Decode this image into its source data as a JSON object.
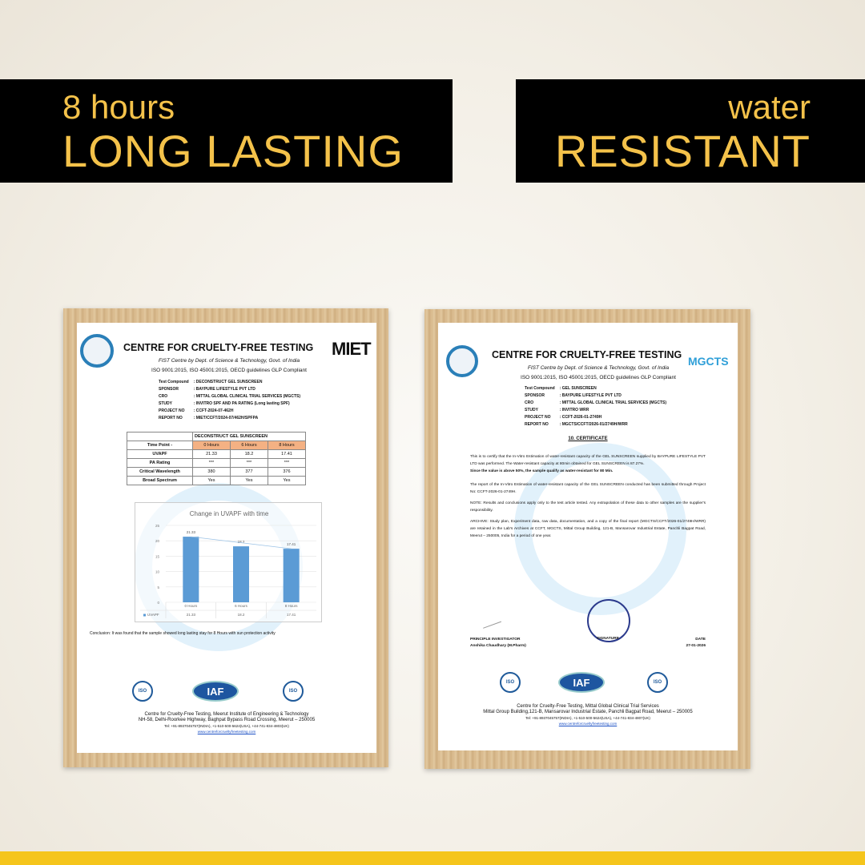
{
  "banners": {
    "left": {
      "small": "8 hours",
      "big": "LONG LASTING"
    },
    "right": {
      "small": "water",
      "big": "RESISTANT"
    },
    "text_color": "#f4c24a",
    "background": "#000000"
  },
  "accent_bar_color": "#f5c51c",
  "cert1": {
    "title": "CENTRE FOR CRUELTY-FREE TESTING",
    "partner_logo": "MIET",
    "subtitle": "FIST Centre by Dept. of Science & Technology, Govt. of India",
    "iso_line": "ISO 9001:2015, ISO 45001:2015, OECD guidelines GLP Compliant",
    "meta": [
      {
        "k": "Test Compound",
        "v": ": DECONSTRUCT GEL SUNSCREEN"
      },
      {
        "k": "SPONSOR",
        "v": ": BAYPURE LIFESTYLE PVT LTD"
      },
      {
        "k": "CRO",
        "v": ": MITTAL GLOBAL CLINICAL TRIAL SERVICES (MGCTS)"
      },
      {
        "k": "STUDY",
        "v": ": INVITRO SPF AND PA RATING (Long lasting SPF)"
      },
      {
        "k": "PROJECT NO",
        "v": ": CCFT-2024-07-462H"
      },
      {
        "k": "REPORT NO",
        "v": ": MIET/CCFT/2024-07/462H/SPFPA"
      }
    ],
    "table": {
      "product": "DECONSTRUCT GEL SUNSCREEN",
      "header": [
        "Time Point -",
        "0 Hours",
        "6 Hours",
        "8 Hours"
      ],
      "rows": [
        [
          "UVAPF",
          "21.33",
          "18.2",
          "17.41"
        ],
        [
          "PA Rating",
          "***",
          "***",
          "***"
        ],
        [
          "Critical Wavelength",
          "380",
          "377",
          "376"
        ],
        [
          "Broad Spectrum",
          "Yes",
          "Yes",
          "Yes"
        ]
      ]
    },
    "conclusion": "Conclusion: It was found that the sample showed long lasting stay for 8 Hours with sun protection activity",
    "footer": {
      "l1": "Centre for Cruelty-Free Testing, Meerut Institute of Engineering & Technology",
      "l2": "NH-58, Delhi-Roorkee Highway, Baghpat Bypass Road Crossing, Meerut – 250005",
      "l3": "Tel: +91-8937045757(INDIA), +1-510-500-5624(USA), +44-741-834-4803(UK)",
      "url": "www.centreforcrueltyfreetesting.com"
    },
    "logos": {
      "iso1": "ISO",
      "iaf": "IAF",
      "iso2": "ISO"
    }
  },
  "chart_data": {
    "type": "bar",
    "title": "Change in UVAPF with time",
    "categories": [
      "0 Hours",
      "6 Hours",
      "8 Hours"
    ],
    "series": [
      {
        "name": "UVAPF",
        "values": [
          21.33,
          18.2,
          17.41
        ],
        "color": "#5b9bd5"
      }
    ],
    "trendline": true,
    "ylim": [
      0,
      25
    ],
    "yticks": [
      0,
      5,
      10,
      15,
      20,
      25
    ],
    "grid": true,
    "data_labels": true,
    "data_table": true
  },
  "cert2": {
    "title": "CENTRE FOR CRUELTY-FREE TESTING",
    "partner_logo": "MGCTS",
    "subtitle": "FIST Centre by Dept. of Science & Technology, Govt. of India",
    "iso_line": "ISO 9001:2015, ISO 45001:2015, OECD guidelines GLP Compliant",
    "meta": [
      {
        "k": "Test Compound",
        "v": ": GEL SUNSCREEN"
      },
      {
        "k": "SPONSOR",
        "v": ": BAYPURE LIFESTYLE PVT LTD"
      },
      {
        "k": "CRO",
        "v": ": MITTAL GLOBAL CLINICAL TRIAL SERVICES (MGCTS)"
      },
      {
        "k": "STUDY",
        "v": ": INVITRO WRR"
      },
      {
        "k": "PROJECT NO",
        "v": ": CCFT-2026-01-2749H"
      },
      {
        "k": "REPORT NO",
        "v": ": MGCTS/CCFT/2026-01/2749H/WRR"
      }
    ],
    "heading": "10. CERTIFICATE",
    "p1": "This is to certify that the In-Vitro Estimation of water-resistant capacity of the GEL SUNSCREEN supplied by BAYPURE LIFESTYLE PVT LTD was performed. The Water-resistant capacity at 80min obtained for GEL SUNSCREEN is 87.27%.",
    "p2": "Since the value is above 50%, the sample qualify as water-resistant for 80 Min.",
    "p3": "The report of the In-Vitro Estimation of water-resistant capacity of the GEL SUNSCREEN conducted has been submitted through Project No: CCFT-2026-01-2749H.",
    "p4": "NOTE: Results and conclusions apply only to the test article tested. Any extrapolation of these data to other samples are the supplier's responsibility.",
    "p5": "ARCHIVE: Study plan, Experiment data, raw data, documentation, and a copy of the final report (MGCTS/CCFT/2026-01/2749H/WRR) are retained in the Lab's Archives at CCFT, MGCTS, Mittal Group Building, 121-B, Mansarovar Industrial Estate, Panchli Bagpat Road, Meerut – 250005, India for a period of one year.",
    "sign": {
      "role": "PRINCIPLE INVESTIGATOR",
      "name": "Anshika Chaudhary (M.Pharm)",
      "sig_label": "SIGNATURE",
      "date_label": "DATE",
      "date": "27-01-2026"
    },
    "footer": {
      "l1": "Centre for Cruelty-Free Testing, Mittal Global Clinical Trial Services",
      "l2": "Mittal Group Building,121-B, Mansarovar Industrial Estate, Panchli Bagpat Road, Meerut – 250005",
      "l3": "Tel: +91-8937045757(INDIA), +1-510-500-5624(USA), +44-741-834-4807(UK)",
      "url": "www.centreforcrueltyfreetesting.com"
    },
    "logos": {
      "iso1": "ISO",
      "iaf": "IAF",
      "iso2": "ISO"
    }
  }
}
